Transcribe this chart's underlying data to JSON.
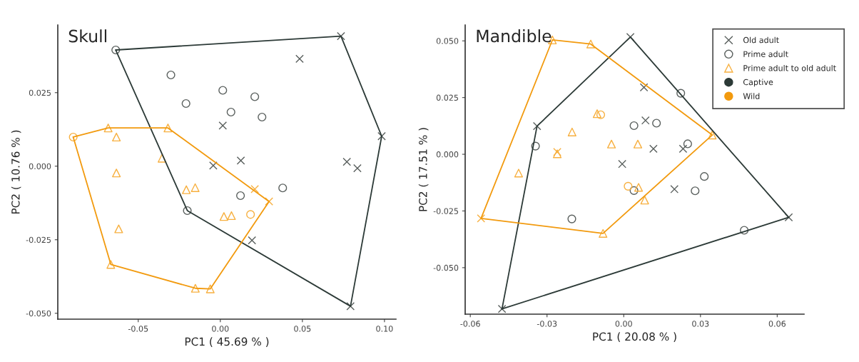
{
  "chart_data": [
    {
      "type": "scatter",
      "title": "Skull",
      "xlabel": "PC1 ( 45.69 % )",
      "ylabel": "PC2 ( 10.76 % )",
      "xlim": [
        -0.099,
        0.107
      ],
      "ylim": [
        -0.052,
        0.048
      ],
      "xticks": [
        {
          "value": -0.05,
          "label": "-0.05"
        },
        {
          "value": 0,
          "label": "0.00"
        },
        {
          "value": 0.05,
          "label": "0.05"
        },
        {
          "value": 0.1,
          "label": "0.10"
        }
      ],
      "yticks": [
        {
          "value": -0.05,
          "label": "-0.050"
        },
        {
          "value": -0.025,
          "label": "-0.025"
        },
        {
          "value": 0,
          "label": "0.000"
        },
        {
          "value": 0.025,
          "label": "0.025"
        }
      ],
      "grid": false,
      "legend": false,
      "series": [
        {
          "marker": "cross",
          "color": "#595f5d",
          "x": [
            -0.0043,
            0.0015,
            0.0735,
            0.0483,
            0.0983,
            0.0125,
            0.0771,
            0.0835,
            0.0193,
            0.0793,
            0.021,
            0.0297
          ],
          "values": [
            0.0002,
            0.0138,
            0.0442,
            0.0365,
            0.0102,
            0.0019,
            0.0015,
            -0.0007,
            -0.0252,
            -0.0476,
            -0.0078,
            -0.012
          ],
          "colors": [
            "#595f5d",
            "#595f5d",
            "#595f5d",
            "#595f5d",
            "#595f5d",
            "#595f5d",
            "#595f5d",
            "#595f5d",
            "#595f5d",
            "#595f5d",
            "#f7b040",
            "#f7b040"
          ]
        },
        {
          "marker": "circle",
          "color": "#595f5d",
          "x": [
            -0.0637,
            -0.0301,
            -0.0209,
            -0.0201,
            0.0015,
            0.021,
            0.0065,
            0.0254,
            0.038,
            0.0123,
            -0.0896,
            0.0184
          ],
          "values": [
            0.0395,
            0.031,
            0.0213,
            -0.0151,
            0.0258,
            0.0236,
            0.0184,
            0.0167,
            -0.0074,
            -0.01,
            0.0099,
            -0.0164
          ],
          "colors": [
            "#595f5d",
            "#595f5d",
            "#595f5d",
            "#595f5d",
            "#595f5d",
            "#595f5d",
            "#595f5d",
            "#595f5d",
            "#595f5d",
            "#595f5d",
            "#f7b040",
            "#f7b040"
          ]
        },
        {
          "marker": "triangle",
          "color": "#f7b040",
          "x": [
            -0.0683,
            -0.0319,
            -0.0633,
            -0.0355,
            -0.0633,
            -0.0207,
            -0.0153,
            -0.0619,
            -0.0667,
            -0.0152,
            -0.0061,
            0.0022,
            0.0068
          ],
          "values": [
            0.013,
            0.013,
            0.0099,
            0.0027,
            -0.0023,
            -0.008,
            -0.0073,
            -0.0213,
            -0.0334,
            -0.0415,
            -0.0417,
            -0.0171,
            -0.0168
          ],
          "colors": [
            "#f7b040",
            "#f7b040",
            "#f7b040",
            "#f7b040",
            "#f7b040",
            "#f7b040",
            "#f7b040",
            "#f7b040",
            "#f7b040",
            "#f7b040",
            "#f7b040",
            "#f7b040",
            "#f7b040"
          ]
        },
        {
          "type": "line",
          "color": "#2c3a37",
          "x": [
            -0.0637,
            0.0735,
            0.0983
          ],
          "values": [
            0.0395,
            0.0442,
            0.0102
          ]
        },
        {
          "type": "line",
          "color": "#2c3a37",
          "x": [
            -0.0637,
            -0.0201,
            0.0793,
            0.0983
          ],
          "values": [
            0.0395,
            -0.0151,
            -0.0476,
            0.0102
          ]
        },
        {
          "type": "line",
          "color": "#f29a0e",
          "x": [
            -0.0896,
            -0.0683,
            -0.0319,
            0.0297
          ],
          "values": [
            0.0099,
            0.013,
            0.013,
            -0.012
          ]
        },
        {
          "type": "line",
          "color": "#f29a0e",
          "x": [
            -0.0896,
            -0.0667,
            -0.0152,
            -0.0061,
            0.0297
          ],
          "values": [
            0.0099,
            -0.0334,
            -0.0415,
            -0.0417,
            -0.012
          ]
        }
      ]
    },
    {
      "type": "scatter",
      "title": "Mandible",
      "xlabel": "PC1 ( 20.08 % )",
      "ylabel": "PC2 ( 17.51 % )",
      "xlim": [
        -0.062,
        0.0705
      ],
      "ylim": [
        -0.0705,
        0.057
      ],
      "xticks": [
        {
          "value": -0.06,
          "label": "-0.06"
        },
        {
          "value": -0.03,
          "label": "-0.03"
        },
        {
          "value": 0,
          "label": "0.00"
        },
        {
          "value": 0.03,
          "label": "0.03"
        },
        {
          "value": 0.06,
          "label": "0.06"
        }
      ],
      "yticks": [
        {
          "value": -0.05,
          "label": "-0.050"
        },
        {
          "value": -0.025,
          "label": "-0.025"
        },
        {
          "value": 0,
          "label": "0.000"
        },
        {
          "value": 0.025,
          "label": "0.025"
        },
        {
          "value": 0.05,
          "label": "0.050"
        }
      ],
      "grid": false,
      "legend": "top right",
      "series": [
        {
          "name": "Old adult",
          "marker": "cross",
          "color": "#595f5d",
          "x": [
            0.0026,
            0.0645,
            -0.0476,
            -0.0339,
            0.0079,
            0.0085,
            0.0116,
            0.0232,
            -0.0006,
            0.0198,
            -0.026,
            -0.0558
          ],
          "values": [
            0.0517,
            -0.0278,
            -0.0682,
            0.0124,
            0.0295,
            0.0149,
            0.0024,
            0.0024,
            -0.0043,
            -0.0154,
            0.001,
            -0.0283
          ],
          "colors": [
            "#595f5d",
            "#595f5d",
            "#595f5d",
            "#595f5d",
            "#595f5d",
            "#595f5d",
            "#595f5d",
            "#595f5d",
            "#595f5d",
            "#595f5d",
            "#f7b040",
            "#f7b040"
          ]
        },
        {
          "name": "Prime adult",
          "marker": "circle",
          "color": "#595f5d",
          "x": [
            -0.0345,
            -0.0203,
            0.0223,
            0.004,
            0.0128,
            0.025,
            0.004,
            0.0315,
            0.0279,
            0.0471,
            -0.009,
            0.0017
          ],
          "values": [
            0.0036,
            -0.0285,
            0.0269,
            0.0126,
            0.0137,
            0.0046,
            -0.016,
            -0.0098,
            -0.0161,
            -0.0335,
            0.0174,
            -0.0141
          ],
          "colors": [
            "#595f5d",
            "#595f5d",
            "#595f5d",
            "#595f5d",
            "#595f5d",
            "#595f5d",
            "#595f5d",
            "#595f5d",
            "#595f5d",
            "#595f5d",
            "#f7b040",
            "#f7b040"
          ]
        },
        {
          "name": "Prime adult to old adult",
          "marker": "triangle",
          "color": "#f7b040",
          "x": [
            -0.0279,
            -0.0129,
            -0.0104,
            -0.0202,
            -0.0048,
            -0.026,
            -0.0411,
            -0.0081,
            0.0055,
            0.0058,
            0.0082,
            0.0346
          ],
          "values": [
            0.0504,
            0.0486,
            0.0179,
            0.0098,
            0.0045,
            0.0002,
            -0.0083,
            -0.0349,
            0.0045,
            -0.0146,
            -0.0202,
            0.0085
          ],
          "colors": [
            "#f7b040",
            "#f7b040",
            "#f7b040",
            "#f7b040",
            "#f7b040",
            "#f7b040",
            "#f7b040",
            "#f7b040",
            "#f7b040",
            "#f7b040",
            "#f7b040",
            "#f7b040"
          ]
        },
        {
          "type": "line",
          "name": "Captive",
          "color": "#2c3a37",
          "x": [
            -0.0476,
            -0.0339,
            0.0026,
            0.0645
          ],
          "values": [
            -0.0682,
            0.0124,
            0.0517,
            -0.0278
          ]
        },
        {
          "type": "line",
          "color": "#2c3a37",
          "x": [
            -0.0476,
            0.0645
          ],
          "values": [
            -0.0682,
            -0.0278
          ]
        },
        {
          "type": "line",
          "name": "Wild",
          "color": "#f29a0e",
          "x": [
            -0.0558,
            -0.0279,
            -0.0129,
            0.0346
          ],
          "values": [
            -0.0283,
            0.0504,
            0.0486,
            0.0085
          ]
        },
        {
          "type": "line",
          "color": "#f29a0e",
          "x": [
            -0.0558,
            -0.0081,
            0.0346
          ],
          "values": [
            -0.0283,
            -0.0349,
            0.0085
          ]
        }
      ]
    }
  ]
}
